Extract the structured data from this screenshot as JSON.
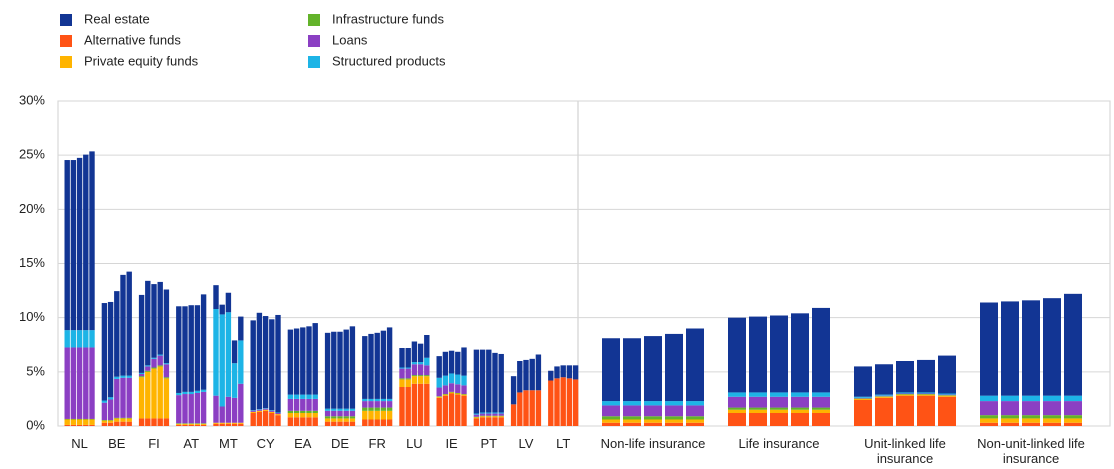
{
  "chart_data": [
    {
      "type": "bar",
      "stacked": true,
      "grid": true,
      "legend": "top-left",
      "categories": [
        "NL",
        "BE",
        "FI",
        "AT",
        "MT",
        "CY",
        "EA",
        "DE",
        "FR",
        "LU",
        "IE",
        "PT",
        "LV",
        "LT"
      ],
      "ylim": [
        0,
        30
      ],
      "yticks": [
        {
          "value": 0,
          "label": "0%"
        },
        {
          "value": 5,
          "label": "5%"
        },
        {
          "value": 10,
          "label": "10%"
        },
        {
          "value": 15,
          "label": "15%"
        },
        {
          "value": 20,
          "label": "20%"
        },
        {
          "value": 25,
          "label": "25%"
        },
        {
          "value": 30,
          "label": "30%"
        }
      ],
      "series": [
        {
          "name": "Real estate",
          "color": "#123594",
          "values": [
            [
              15.7,
              15.7,
              15.9,
              16.2,
              16.5
            ],
            [
              9.0,
              8.8,
              7.9,
              9.3,
              9.6
            ],
            [
              7.2,
              7.8,
              6.8,
              6.7,
              6.8
            ],
            [
              8.0,
              7.9,
              8.0,
              7.9,
              8.8
            ],
            [
              2.2,
              0.9,
              1.8,
              2.1,
              2.2
            ],
            [
              8.3,
              8.9,
              8.5,
              8.4,
              9.0
            ],
            [
              6.0,
              6.1,
              6.2,
              6.3,
              6.6
            ],
            [
              7.0,
              7.1,
              7.1,
              7.3,
              7.6
            ],
            [
              5.8,
              6.0,
              6.1,
              6.3,
              6.6
            ],
            [
              1.8,
              1.8,
              1.9,
              1.7,
              2.1
            ],
            [
              2.0,
              2.2,
              2.1,
              2.1,
              2.6
            ],
            [
              5.9,
              5.8,
              5.8,
              5.5,
              5.4
            ],
            [
              2.6,
              2.9,
              2.8,
              2.9,
              3.3
            ],
            [
              0.9,
              1.1,
              1.1,
              1.2,
              1.3
            ]
          ]
        },
        {
          "name": "Alternative funds",
          "color": "#ff5315",
          "values": [
            [
              0.1,
              0.1,
              0.1,
              0.1,
              0.1
            ],
            [
              0.3,
              0.3,
              0.4,
              0.4,
              0.4
            ],
            [
              0.7,
              0.7,
              0.7,
              0.7,
              0.7
            ],
            [
              0.1,
              0.1,
              0.1,
              0.1,
              0.1
            ],
            [
              0.2,
              0.2,
              0.2,
              0.2,
              0.2
            ],
            [
              1.2,
              1.3,
              1.4,
              1.2,
              1.0
            ],
            [
              0.8,
              0.8,
              0.8,
              0.8,
              0.8
            ],
            [
              0.4,
              0.4,
              0.4,
              0.4,
              0.4
            ],
            [
              0.6,
              0.6,
              0.6,
              0.6,
              0.6
            ],
            [
              3.6,
              3.6,
              3.9,
              3.9,
              3.9
            ],
            [
              2.6,
              2.8,
              3.0,
              2.9,
              2.8
            ],
            [
              0.7,
              0.8,
              0.8,
              0.8,
              0.8
            ],
            [
              2.0,
              3.1,
              3.3,
              3.3,
              3.3
            ],
            [
              4.2,
              4.4,
              4.5,
              4.4,
              4.3
            ]
          ]
        },
        {
          "name": "Private equity funds",
          "color": "#ffb400",
          "values": [
            [
              0.5,
              0.5,
              0.5,
              0.5,
              0.5
            ],
            [
              0.2,
              0.2,
              0.3,
              0.3,
              0.3
            ],
            [
              3.8,
              4.3,
              4.6,
              4.8,
              3.7
            ],
            [
              0.1,
              0.1,
              0.1,
              0.1,
              0.1
            ],
            [
              0.1,
              0.1,
              0.1,
              0.1,
              0.1
            ],
            [
              0.1,
              0.1,
              0.1,
              0.1,
              0.1
            ],
            [
              0.4,
              0.4,
              0.4,
              0.4,
              0.4
            ],
            [
              0.3,
              0.3,
              0.3,
              0.3,
              0.3
            ],
            [
              0.8,
              0.8,
              0.8,
              0.8,
              0.8
            ],
            [
              0.7,
              0.7,
              0.7,
              0.7,
              0.7
            ],
            [
              0.1,
              0.1,
              0.1,
              0.1,
              0.1
            ],
            [
              0.1,
              0.1,
              0.1,
              0.1,
              0.1
            ],
            [
              0,
              0,
              0,
              0,
              0
            ],
            [
              0,
              0,
              0,
              0,
              0
            ]
          ]
        },
        {
          "name": "Infrastructure funds",
          "color": "#63b32a",
          "values": [
            [
              0.05,
              0.05,
              0.05,
              0.05,
              0.05
            ],
            [
              0.05,
              0.05,
              0.05,
              0.05,
              0.05
            ],
            [
              0.1,
              0.1,
              0.1,
              0.1,
              0.1
            ],
            [
              0.05,
              0.05,
              0.05,
              0.05,
              0.05
            ],
            [
              0,
              0,
              0,
              0,
              0
            ],
            [
              0,
              0,
              0,
              0,
              0
            ],
            [
              0.2,
              0.2,
              0.2,
              0.2,
              0.2
            ],
            [
              0.2,
              0.2,
              0.2,
              0.2,
              0.2
            ],
            [
              0.3,
              0.3,
              0.3,
              0.3,
              0.3
            ],
            [
              0.1,
              0.1,
              0.1,
              0.1,
              0.1
            ],
            [
              0.05,
              0.05,
              0.05,
              0.05,
              0.05
            ],
            [
              0.05,
              0.05,
              0.05,
              0.05,
              0.05
            ],
            [
              0,
              0,
              0,
              0,
              0
            ],
            [
              0,
              0,
              0,
              0,
              0
            ]
          ]
        },
        {
          "name": "Loans",
          "color": "#8b3fc3",
          "values": [
            [
              6.6,
              6.6,
              6.6,
              6.6,
              6.6
            ],
            [
              1.6,
              1.9,
              3.6,
              3.7,
              3.7
            ],
            [
              0.2,
              0.4,
              0.8,
              0.9,
              1.2
            ],
            [
              2.6,
              2.7,
              2.7,
              2.8,
              2.9
            ],
            [
              2.5,
              1.5,
              2.4,
              2.3,
              3.6
            ],
            [
              0.1,
              0.1,
              0.1,
              0.1,
              0.1
            ],
            [
              1.1,
              1.1,
              1.1,
              1.1,
              1.1
            ],
            [
              0.5,
              0.5,
              0.5,
              0.5,
              0.5
            ],
            [
              0.6,
              0.6,
              0.6,
              0.6,
              0.6
            ],
            [
              0.9,
              0.9,
              1.0,
              1.0,
              0.9
            ],
            [
              0.8,
              0.8,
              0.8,
              0.8,
              0.8
            ],
            [
              0.2,
              0.2,
              0.2,
              0.2,
              0.2
            ],
            [
              0,
              0,
              0,
              0,
              0
            ],
            [
              0,
              0,
              0,
              0,
              0
            ]
          ]
        },
        {
          "name": "Structured products",
          "color": "#1db4e6",
          "values": [
            [
              1.6,
              1.6,
              1.6,
              1.6,
              1.6
            ],
            [
              0.2,
              0.2,
              0.2,
              0.2,
              0.2
            ],
            [
              0.1,
              0.1,
              0.1,
              0.1,
              0.1
            ],
            [
              0.2,
              0.2,
              0.2,
              0.2,
              0.2
            ],
            [
              8.0,
              8.5,
              7.8,
              3.2,
              4.0
            ],
            [
              0.05,
              0.05,
              0.05,
              0.05,
              0.05
            ],
            [
              0.4,
              0.4,
              0.4,
              0.4,
              0.4
            ],
            [
              0.2,
              0.2,
              0.2,
              0.2,
              0.2
            ],
            [
              0.2,
              0.2,
              0.2,
              0.2,
              0.2
            ],
            [
              0.1,
              0.1,
              0.2,
              0.2,
              0.7
            ],
            [
              0.9,
              0.9,
              0.9,
              0.9,
              0.9
            ],
            [
              0.1,
              0.1,
              0.1,
              0.1,
              0.1
            ],
            [
              0,
              0,
              0,
              0,
              0
            ],
            [
              0,
              0,
              0,
              0,
              0
            ]
          ]
        }
      ]
    },
    {
      "type": "bar",
      "stacked": true,
      "categories": [
        "Non-life insurance",
        "Life insurance",
        "Unit-linked life insurance",
        "Non-unit-linked life insurance"
      ],
      "ylim": [
        0,
        30
      ],
      "series": [
        {
          "color": "#123594",
          "values": [
            [
              5.8,
              5.8,
              6.0,
              6.2,
              6.7
            ],
            [
              6.9,
              7.0,
              7.1,
              7.3,
              7.8
            ],
            [
              2.8,
              2.8,
              2.9,
              3.0,
              3.5
            ],
            [
              8.6,
              8.7,
              8.8,
              9.0,
              9.4
            ]
          ]
        },
        {
          "color": "#ff5315",
          "values": [
            [
              0.3,
              0.3,
              0.3,
              0.3,
              0.3
            ],
            [
              1.2,
              1.2,
              1.2,
              1.2,
              1.2
            ],
            [
              2.4,
              2.6,
              2.8,
              2.8,
              2.7
            ],
            [
              0.3,
              0.3,
              0.3,
              0.3,
              0.3
            ]
          ]
        },
        {
          "color": "#ffb400",
          "values": [
            [
              0.3,
              0.3,
              0.3,
              0.3,
              0.3
            ],
            [
              0.3,
              0.3,
              0.3,
              0.3,
              0.3
            ],
            [
              0.1,
              0.1,
              0.1,
              0.1,
              0.1
            ],
            [
              0.4,
              0.4,
              0.4,
              0.4,
              0.4
            ]
          ]
        },
        {
          "color": "#63b32a",
          "values": [
            [
              0.3,
              0.3,
              0.3,
              0.3,
              0.3
            ],
            [
              0.2,
              0.2,
              0.2,
              0.2,
              0.2
            ],
            [
              0.05,
              0.05,
              0.05,
              0.05,
              0.05
            ],
            [
              0.3,
              0.3,
              0.3,
              0.3,
              0.3
            ]
          ]
        },
        {
          "color": "#8b3fc3",
          "values": [
            [
              1.0,
              1.0,
              1.0,
              1.0,
              1.0
            ],
            [
              1.0,
              1.0,
              1.0,
              1.0,
              1.0
            ],
            [
              0.05,
              0.05,
              0.05,
              0.05,
              0.05
            ],
            [
              1.3,
              1.3,
              1.3,
              1.3,
              1.3
            ]
          ]
        },
        {
          "color": "#1db4e6",
          "values": [
            [
              0.4,
              0.4,
              0.4,
              0.4,
              0.4
            ],
            [
              0.4,
              0.4,
              0.4,
              0.4,
              0.4
            ],
            [
              0.1,
              0.1,
              0.1,
              0.1,
              0.1
            ],
            [
              0.5,
              0.5,
              0.5,
              0.5,
              0.5
            ]
          ]
        }
      ]
    }
  ]
}
